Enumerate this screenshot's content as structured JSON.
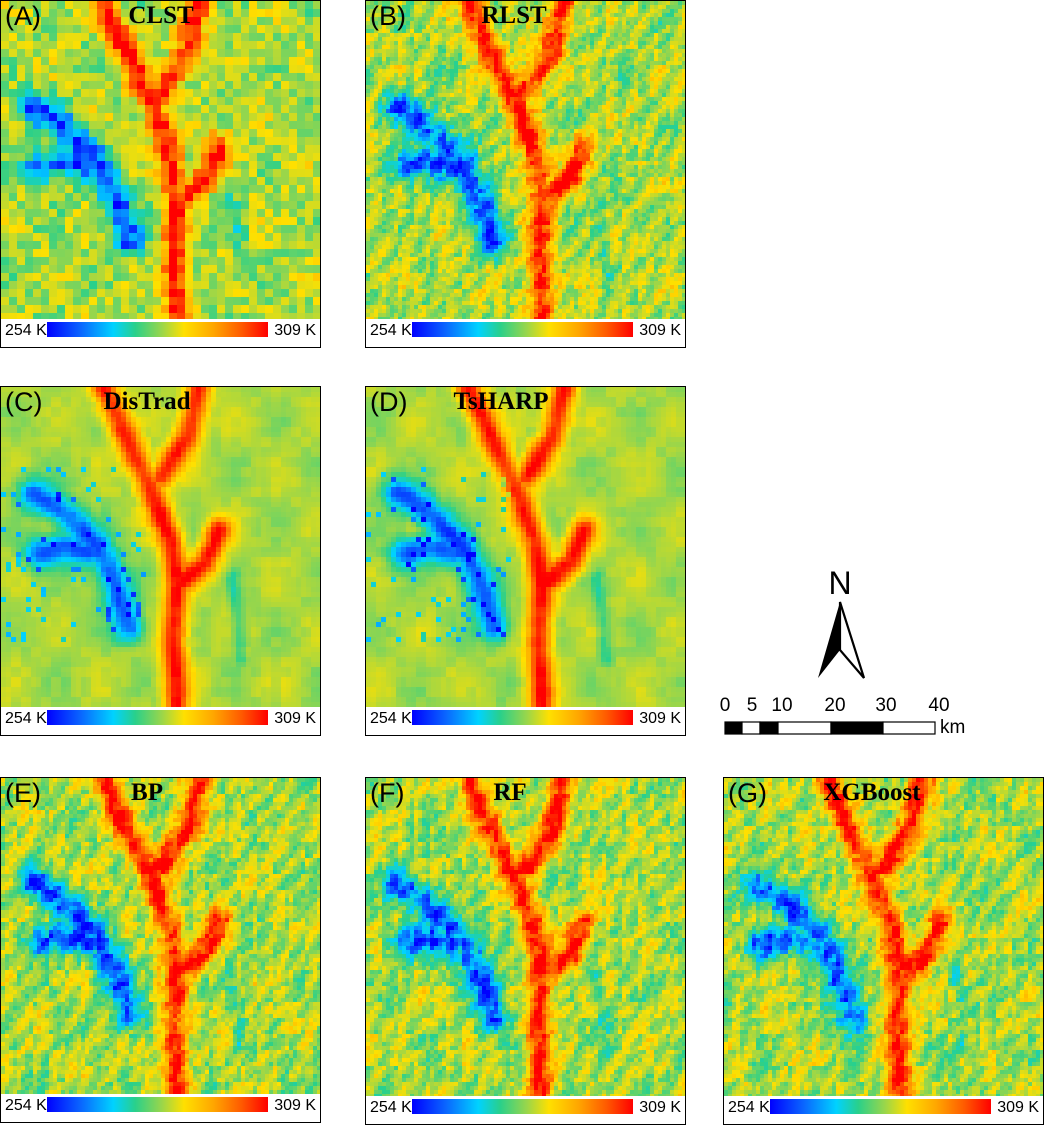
{
  "figure": {
    "panels": [
      {
        "id": "A",
        "label": "(A)",
        "title": "CLST",
        "style": "coarse",
        "seed": 11
      },
      {
        "id": "B",
        "label": "(B)",
        "title": "RLST",
        "style": "fine",
        "seed": 23
      },
      {
        "id": "C",
        "label": "(C)",
        "title": "DisTrad",
        "style": "smooth",
        "seed": 37
      },
      {
        "id": "D",
        "label": "(D)",
        "title": "TsHARP",
        "style": "smooth",
        "seed": 41
      },
      {
        "id": "E",
        "label": "(E)",
        "title": "BP",
        "style": "fine",
        "seed": 53
      },
      {
        "id": "F",
        "label": "(F)",
        "title": "RF",
        "style": "fine",
        "seed": 67
      },
      {
        "id": "G",
        "label": "(G)",
        "title": "XGBoost",
        "style": "fine",
        "seed": 79
      }
    ],
    "colorbar": {
      "min_label": "254 K",
      "max_label": "309 K",
      "min_value": 254,
      "max_value": 309,
      "colors": [
        "#0000ff",
        "#0a64ff",
        "#00d2ff",
        "#2ad08a",
        "#9ad64a",
        "#ffe000",
        "#ffa800",
        "#ff5a00",
        "#ff0000"
      ]
    },
    "north_arrow": {
      "label": "N"
    },
    "scale_bar": {
      "ticks": [
        "0",
        "5",
        "10",
        "20",
        "30",
        "40"
      ],
      "tick_values_km": [
        0,
        5,
        10,
        20,
        30,
        40
      ],
      "unit": "km"
    }
  }
}
